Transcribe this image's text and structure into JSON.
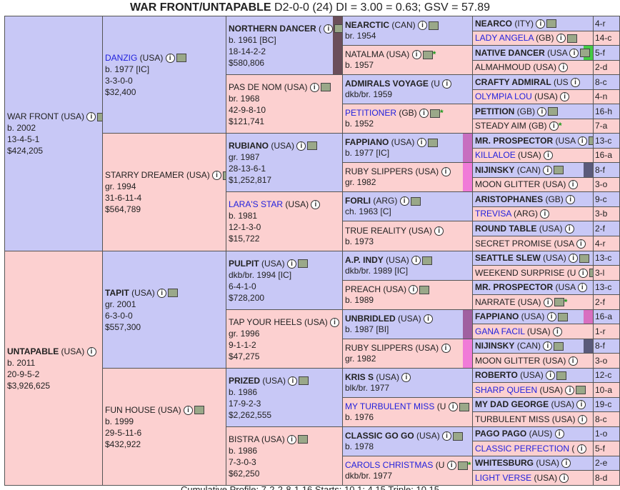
{
  "header": {
    "title": "WAR FRONT/UNTAPABLE",
    "stats": " D2-0-0 (24) DI = 3.00   = 0.63; GSV = 57.89"
  },
  "footer": {
    "text": "Cumulative Profile: 7-2-2-8-1   16   Starts: 10   1: 4.15   Triple: 10.15"
  },
  "gen1": [
    {
      "name": "WAR FRONT",
      "suffix": " (USA)",
      "l1": "b. 2002",
      "l2": "13-4-5-1",
      "l3": "$424,205"
    },
    {
      "name": "UNTAPABLE",
      "suffix": " (USA)",
      "l1": "b. 2011",
      "l2": "20-9-5-2",
      "l3": "$3,926,625"
    }
  ],
  "gen2": [
    {
      "name": "DANZIG",
      "suffix": " (USA)",
      "l1": "b. 1977 [IC]",
      "l2": "3-3-0-0",
      "l3": "$32,400"
    },
    {
      "name": "STARRY DREAMER",
      "suffix": " (USA)",
      "l1": "gr. 1994",
      "l2": "31-6-11-4",
      "l3": "$564,789"
    },
    {
      "name": "TAPIT",
      "suffix": " (USA)",
      "l1": "gr. 2001",
      "l2": "6-3-0-0",
      "l3": "$557,300"
    },
    {
      "name": "FUN HOUSE",
      "suffix": " (USA)",
      "l1": "b. 1999",
      "l2": "29-5-11-6",
      "l3": "$432,922"
    }
  ],
  "gen3": [
    {
      "name": "NORTHERN DANCER",
      "suffix": " (",
      "l1": "b. 1961 [BC]",
      "l2": "18-14-2-2",
      "l3": "$580,806"
    },
    {
      "name": "PAS DE NOM",
      "suffix": " (USA)",
      "l1": "br. 1968",
      "l2": "42-9-8-10",
      "l3": "$121,741"
    },
    {
      "name": "RUBIANO",
      "suffix": " (USA)",
      "l1": "gr. 1987",
      "l2": "28-13-6-1",
      "l3": "$1,252,817"
    },
    {
      "name": "LARA'S STAR",
      "suffix": " (USA)",
      "l1": "b. 1981",
      "l2": "12-1-3-0",
      "l3": "$15,722"
    },
    {
      "name": "PULPIT",
      "suffix": " (USA)",
      "l1": "dkb/br. 1994 [IC]",
      "l2": "6-4-1-0",
      "l3": "$728,200"
    },
    {
      "name": "TAP YOUR HEELS",
      "suffix": " (USA)",
      "l1": "gr. 1996",
      "l2": "9-1-1-2",
      "l3": "$47,275"
    },
    {
      "name": "PRIZED",
      "suffix": " (USA)",
      "l1": "b. 1986",
      "l2": "17-9-2-3",
      "l3": "$2,262,555"
    },
    {
      "name": "BISTRA",
      "suffix": " (USA)",
      "l1": "b. 1986",
      "l2": "7-3-0-3",
      "l3": "$62,250"
    }
  ],
  "gen4": [
    {
      "name": "NEARCTIC",
      "suffix": " (CAN)",
      "l1": "br. 1954"
    },
    {
      "name": "NATALMA",
      "suffix": " (USA)",
      "l1": "b. 1957"
    },
    {
      "name": "ADMIRALS VOYAGE",
      "suffix": " (U",
      "l1": "dkb/br. 1959"
    },
    {
      "name": "PETITIONER",
      "suffix": " (GB)",
      "l1": "b. 1952"
    },
    {
      "name": "FAPPIANO",
      "suffix": " (USA)",
      "l1": "b. 1977 [IC]"
    },
    {
      "name": "RUBY SLIPPERS",
      "suffix": " (USA)",
      "l1": "gr. 1982"
    },
    {
      "name": "FORLI",
      "suffix": " (ARG)",
      "l1": "ch. 1963 [C]"
    },
    {
      "name": "TRUE REALITY",
      "suffix": " (USA)",
      "l1": "b. 1973"
    },
    {
      "name": "A.P. INDY",
      "suffix": " (USA)",
      "l1": "dkb/br. 1989 [IC]"
    },
    {
      "name": "PREACH",
      "suffix": " (USA)",
      "l1": "b. 1989"
    },
    {
      "name": "UNBRIDLED",
      "suffix": " (USA)",
      "l1": "b. 1987 [BI]"
    },
    {
      "name": "RUBY SLIPPERS",
      "suffix": " (USA)",
      "l1": "gr. 1982"
    },
    {
      "name": "KRIS S",
      "suffix": " (USA)",
      "l1": "blk/br. 1977"
    },
    {
      "name": "MY TURBULENT MISS",
      "suffix": " (U",
      "l1": "b. 1976"
    },
    {
      "name": "CLASSIC GO GO",
      "suffix": " (USA)",
      "l1": "b. 1978"
    },
    {
      "name": "CAROLS CHRISTMAS",
      "suffix": " (U",
      "l1": "dkb/br. 1977"
    }
  ],
  "gen5": [
    {
      "name": "NEARCO",
      "suffix": " (ITY)",
      "r": "4-r"
    },
    {
      "name": "LADY ANGELA",
      "suffix": " (GB)",
      "r": "14-c"
    },
    {
      "name": "NATIVE DANCER",
      "suffix": " (USA",
      "r": "5-f"
    },
    {
      "name": "ALMAHMOUD",
      "suffix": " (USA)",
      "r": "2-d"
    },
    {
      "name": "CRAFTY ADMIRAL",
      "suffix": " (US",
      "r": "8-c"
    },
    {
      "name": "OLYMPIA LOU",
      "suffix": " (USA)",
      "r": "4-n"
    },
    {
      "name": "PETITION",
      "suffix": " (GB)",
      "r": "16-h"
    },
    {
      "name": "STEADY AIM",
      "suffix": " (GB)",
      "r": "7-a"
    },
    {
      "name": "MR. PROSPECTOR",
      "suffix": " (USA",
      "r": "13-c"
    },
    {
      "name": "KILLALOE",
      "suffix": " (USA)",
      "r": "16-a"
    },
    {
      "name": "NIJINSKY",
      "suffix": " (CAN)",
      "r": "8-f"
    },
    {
      "name": "MOON GLITTER",
      "suffix": " (USA)",
      "r": "3-o"
    },
    {
      "name": "ARISTOPHANES",
      "suffix": " (GB)",
      "r": "9-c"
    },
    {
      "name": "TREVISA",
      "suffix": " (ARG)",
      "r": "3-b"
    },
    {
      "name": "ROUND TABLE",
      "suffix": " (USA)",
      "r": "2-f"
    },
    {
      "name": "SECRET PROMISE",
      "suffix": " (USA",
      "r": "4-r"
    },
    {
      "name": "SEATTLE SLEW",
      "suffix": " (USA)",
      "r": "13-c"
    },
    {
      "name": "WEEKEND SURPRISE",
      "suffix": " (U",
      "r": "3-l"
    },
    {
      "name": "MR. PROSPECTOR",
      "suffix": " (USA",
      "r": "13-c"
    },
    {
      "name": "NARRATE",
      "suffix": " (USA)",
      "r": "2-f"
    },
    {
      "name": "FAPPIANO",
      "suffix": " (USA)",
      "r": "16-a"
    },
    {
      "name": "GANA FACIL",
      "suffix": " (USA)",
      "r": "1-r"
    },
    {
      "name": "NIJINSKY",
      "suffix": " (CAN)",
      "r": "8-f"
    },
    {
      "name": "MOON GLITTER",
      "suffix": " (USA)",
      "r": "3-o"
    },
    {
      "name": "ROBERTO",
      "suffix": " (USA)",
      "r": "12-c"
    },
    {
      "name": "SHARP QUEEN",
      "suffix": " (USA)",
      "r": "10-a"
    },
    {
      "name": "MY DAD GEORGE",
      "suffix": " (USA)",
      "r": "19-c"
    },
    {
      "name": "TURBULENT MISS",
      "suffix": " (USA)",
      "r": "8-c"
    },
    {
      "name": "PAGO PAGO",
      "suffix": " (AUS)",
      "r": "1-o"
    },
    {
      "name": "CLASSIC PERFECTION",
      "suffix": " (",
      "r": "5-f"
    },
    {
      "name": "WHITESBURG",
      "suffix": " (USA)",
      "r": "2-e"
    },
    {
      "name": "LIGHT VERSE",
      "suffix": " (USA)",
      "r": "8-d"
    }
  ],
  "colors": {
    "male": "#c8c8f6",
    "female": "#fcd0d0",
    "link": "#2222dd",
    "star": "#1a9a1a"
  }
}
